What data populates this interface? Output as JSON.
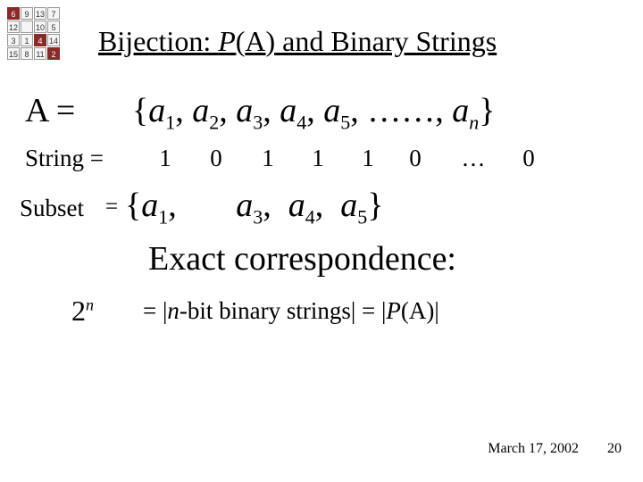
{
  "icon": {
    "cells": [
      {
        "v": "6",
        "red": true
      },
      {
        "v": "9",
        "red": false
      },
      {
        "v": "13",
        "red": false
      },
      {
        "v": "7",
        "red": false
      },
      {
        "v": "12",
        "red": false
      },
      {
        "v": "",
        "red": false
      },
      {
        "v": "10",
        "red": false
      },
      {
        "v": "5",
        "red": false
      },
      {
        "v": "3",
        "red": false
      },
      {
        "v": "1",
        "red": false
      },
      {
        "v": "4",
        "red": true
      },
      {
        "v": "14",
        "red": false
      },
      {
        "v": "15",
        "red": false
      },
      {
        "v": "8",
        "red": false
      },
      {
        "v": "11",
        "red": false
      },
      {
        "v": "2",
        "red": true
      }
    ]
  },
  "title": {
    "full": "Bijection: P(A) and Binary Strings",
    "prefix": "Bijection: ",
    "P": "P",
    "paren_open": "(",
    "A": "A",
    "paren_close": ")",
    "suffix": " and Binary Strings"
  },
  "lineA": {
    "lhs": "A = ",
    "open": "{",
    "elems": [
      "a",
      "a",
      "a",
      "a",
      "a"
    ],
    "subs": [
      "1",
      "2",
      "3",
      "4",
      "5"
    ],
    "dots": ", ……, ",
    "last_a": "a",
    "last_sub": "n",
    "close": "}"
  },
  "lineString": {
    "label": "String = ",
    "bits": [
      "1",
      "0",
      "1",
      "1",
      "1",
      "0",
      "…",
      "0"
    ]
  },
  "lineSubset": {
    "label": "Subset",
    "eq": " = ",
    "open": "{",
    "a": "a",
    "subs": [
      "1",
      "3",
      "4",
      "5"
    ],
    "close": "}"
  },
  "lineExact": "Exact correspondence:",
  "line2n": {
    "base": "2",
    "exp": "n"
  },
  "lineNbit": {
    "eq": "= ",
    "bar1": "|",
    "n": "n",
    "mid": "-bit binary strings| = |",
    "P": "P",
    "Aarg": "(A)",
    "bar2": "|"
  },
  "footer": {
    "date": "March 17, 2002",
    "page": "20"
  }
}
